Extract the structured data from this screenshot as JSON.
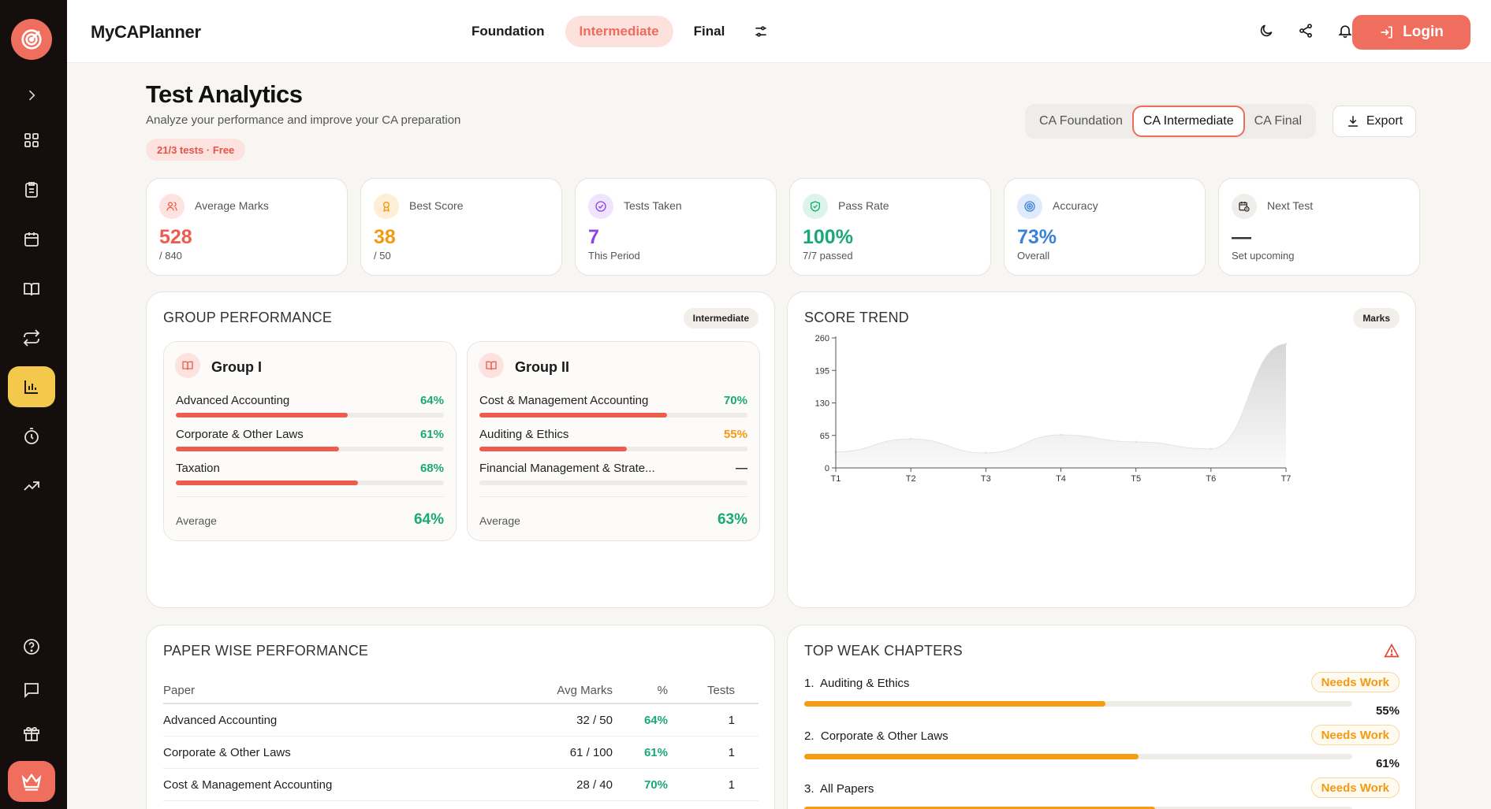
{
  "app": {
    "brand": "MyCAPlanner"
  },
  "header": {
    "levels": [
      "Foundation",
      "Intermediate",
      "Final"
    ],
    "active_level": "Intermediate",
    "login_label": "Login",
    "icons": [
      "theme-moon-icon",
      "share-icon",
      "bell-icon"
    ]
  },
  "sidebar": {
    "items": [
      "expand-chevron-icon",
      "dashboard-grid-icon",
      "clipboard-icon",
      "calendar-icon",
      "book-icon",
      "repeat-icon",
      "analytics-chart-icon",
      "timer-icon",
      "trending-up-icon",
      "help-icon",
      "message-icon",
      "gift-icon",
      "crown-icon"
    ],
    "active": "analytics-chart-icon"
  },
  "page": {
    "title": "Test Analytics",
    "subtitle": "Analyze your performance and improve your CA preparation",
    "badge": "21/3 tests · Free",
    "exam_tabs": [
      "CA Foundation",
      "CA Intermediate",
      "CA Final"
    ],
    "active_exam": "CA Intermediate",
    "export_label": "Export"
  },
  "stats": [
    {
      "label": "Average Marks",
      "value": "528",
      "sub": "/ 840",
      "color": "#ee5c4e",
      "icon": "users-icon",
      "icon_bg": "#fde3df"
    },
    {
      "label": "Best Score",
      "value": "38",
      "sub": "/ 50",
      "color": "#f39a12",
      "icon": "award-icon",
      "icon_bg": "#fdeed5"
    },
    {
      "label": "Tests Taken",
      "value": "7",
      "sub": "This Period",
      "color": "#8b44e8",
      "icon": "check-circle-icon",
      "icon_bg": "#efe4fc"
    },
    {
      "label": "Pass Rate",
      "value": "100%",
      "sub": "7/7 passed",
      "color": "#1aa877",
      "icon": "shield-check-icon",
      "icon_bg": "#dcf4ea"
    },
    {
      "label": "Accuracy",
      "value": "73%",
      "sub": "Overall",
      "color": "#3b82d6",
      "icon": "target-icon",
      "icon_bg": "#dfeafb"
    },
    {
      "label": "Next Test",
      "value": "—",
      "sub": "Set upcoming",
      "color": "#333333",
      "icon": "calendar-clock-icon",
      "icon_bg": "#f0eeeb"
    }
  ],
  "group_performance": {
    "title": "GROUP PERFORMANCE",
    "pill": "Intermediate",
    "groups": [
      {
        "name": "Group I",
        "subjects": [
          {
            "name": "Advanced Accounting",
            "pct": "64%",
            "fill": 0.64,
            "color": "#1aa877"
          },
          {
            "name": "Corporate & Other Laws",
            "pct": "61%",
            "fill": 0.61,
            "color": "#1aa877"
          },
          {
            "name": "Taxation",
            "pct": "68%",
            "fill": 0.68,
            "color": "#1aa877"
          }
        ],
        "average_label": "Average",
        "average": "64%"
      },
      {
        "name": "Group II",
        "subjects": [
          {
            "name": "Cost & Management Accounting",
            "pct": "70%",
            "fill": 0.7,
            "color": "#1aa877"
          },
          {
            "name": "Auditing & Ethics",
            "pct": "55%",
            "fill": 0.55,
            "color": "#f39a12"
          },
          {
            "name": "Financial Management & Strate...",
            "pct": "—",
            "fill": 0,
            "color": "#333333"
          }
        ],
        "average_label": "Average",
        "average": "63%"
      }
    ]
  },
  "score_trend": {
    "title": "SCORE TREND",
    "pill": "Marks"
  },
  "chart_data": {
    "type": "area",
    "title": "SCORE TREND",
    "categories": [
      "T1",
      "T2",
      "T3",
      "T4",
      "T5",
      "T6",
      "T7"
    ],
    "values": [
      32,
      58,
      30,
      66,
      52,
      38,
      248
    ],
    "yticks": [
      "0",
      "65",
      "130",
      "195",
      "260"
    ],
    "ylim": [
      0,
      260
    ],
    "color": "#e3e3e3"
  },
  "paper_performance": {
    "title": "PAPER WISE PERFORMANCE",
    "columns": [
      "Paper",
      "Avg Marks",
      "%",
      "Tests"
    ],
    "rows": [
      {
        "paper": "Advanced Accounting",
        "avg": "32 / 50",
        "pct": "64%",
        "tests": "1"
      },
      {
        "paper": "Corporate & Other Laws",
        "avg": "61 / 100",
        "pct": "61%",
        "tests": "1"
      },
      {
        "paper": "Cost & Management Accounting",
        "avg": "28 / 40",
        "pct": "70%",
        "tests": "1"
      }
    ]
  },
  "weak_chapters": {
    "title": "TOP WEAK CHAPTERS",
    "items": [
      {
        "rank": "1.",
        "name": "Auditing & Ethics",
        "badge": "Needs Work",
        "pct": "55%",
        "fill": 0.55
      },
      {
        "rank": "2.",
        "name": "Corporate & Other Laws",
        "badge": "Needs Work",
        "pct": "61%",
        "fill": 0.61
      },
      {
        "rank": "3.",
        "name": "All Papers",
        "badge": "Needs Work",
        "pct": "",
        "fill": 0.64
      }
    ]
  }
}
